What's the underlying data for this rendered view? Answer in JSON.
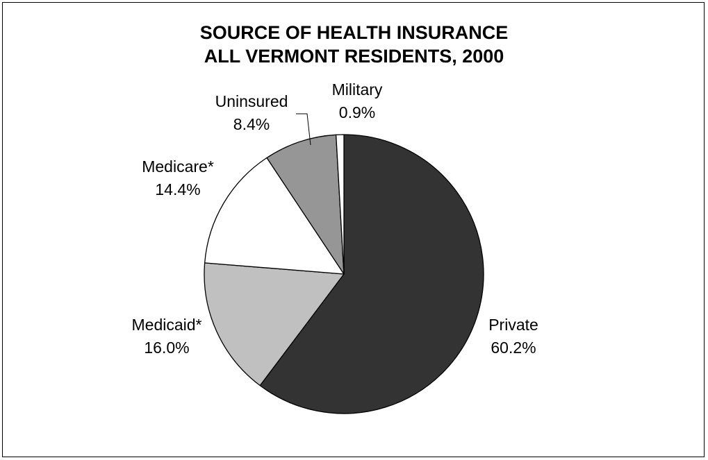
{
  "chart_data": {
    "type": "pie",
    "title_lines": [
      "SOURCE OF HEALTH INSURANCE",
      "ALL VERMONT RESIDENTS, 2000"
    ],
    "slices": [
      {
        "label": "Private",
        "value": 60.2,
        "value_label": "60.2%",
        "color": "#333333"
      },
      {
        "label": "Medicaid*",
        "value": 16.0,
        "value_label": "16.0%",
        "color": "#c0c0c0"
      },
      {
        "label": "Medicare*",
        "value": 14.4,
        "value_label": "14.4%",
        "color": "#ffffff"
      },
      {
        "label": "Uninsured",
        "value": 8.4,
        "value_label": "8.4%",
        "color": "#969696"
      },
      {
        "label": "Military",
        "value": 0.9,
        "value_label": "0.9%",
        "color": "#ffffff"
      }
    ],
    "start": "12 o'clock",
    "direction": "clockwise",
    "legend": "none",
    "stroke_color": "#000000",
    "background": "#ffffff"
  }
}
